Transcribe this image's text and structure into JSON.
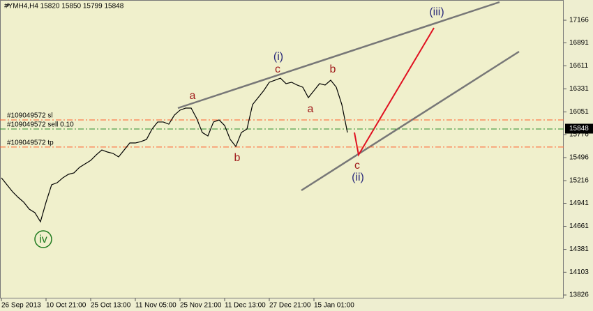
{
  "chart_data": {
    "type": "line",
    "title": "#YMH4,H4  15820 15850 15799 15848",
    "categories": [
      "26 Sep 2013",
      null,
      null,
      null,
      null,
      null,
      null,
      null,
      "10 Oct 21:00",
      null,
      null,
      null,
      null,
      null,
      null,
      null,
      "25 Oct 13:00",
      null,
      null,
      null,
      null,
      null,
      null,
      null,
      "11 Nov 05:00",
      null,
      null,
      null,
      null,
      null,
      null,
      null,
      "25 Nov 21:00",
      null,
      null,
      null,
      null,
      null,
      null,
      null,
      "11 Dec 13:00",
      null,
      null,
      null,
      null,
      null,
      null,
      null,
      "27 Dec 21:00",
      null,
      null,
      null,
      null,
      null,
      null,
      null,
      "15 Jan 01:00",
      null,
      null,
      null,
      null,
      null,
      null
    ],
    "values": [
      15250,
      15166,
      15081,
      15013,
      14954,
      14869,
      14827,
      14716,
      14954,
      15166,
      15191,
      15250,
      15293,
      15310,
      15378,
      15420,
      15462,
      15530,
      15589,
      15564,
      15547,
      15505,
      15589,
      15674,
      15674,
      15691,
      15717,
      15844,
      15929,
      15929,
      15903,
      16013,
      16073,
      16098,
      16098,
      15971,
      15801,
      15759,
      15929,
      15954,
      15886,
      15717,
      15632,
      15801,
      15844,
      16140,
      16225,
      16310,
      16412,
      16437,
      16462,
      16395,
      16412,
      16378,
      16352,
      16225,
      16310,
      16395,
      16378,
      16437,
      16352,
      16140,
      15801
    ],
    "color": "#000000",
    "ylim": [
      13784,
      17412
    ],
    "yticks": [
      13826,
      14103,
      14381,
      14661,
      14941,
      15216,
      15496,
      15776,
      16051,
      16331,
      16611,
      16891,
      17166
    ],
    "current_price": 15848,
    "levels": [
      {
        "label": "#109049572 sl",
        "value": 15954,
        "color": "#ff5a28"
      },
      {
        "label": "#109049572 sell 0.10",
        "value": 15844,
        "color": "#2e8b2e"
      },
      {
        "label": "#109049572 tp",
        "value": 15624,
        "color": "#ff5a28"
      }
    ],
    "annotations": [
      {
        "text": "(iii)",
        "color": "#2b2b7a"
      },
      {
        "text": "(i)",
        "color": "#2b2b7a"
      },
      {
        "text": "c",
        "color": "#a01c1c"
      },
      {
        "text": "b",
        "color": "#a01c1c"
      },
      {
        "text": "a",
        "color": "#a01c1c"
      },
      {
        "text": "a",
        "color": "#a01c1c"
      },
      {
        "text": "b",
        "color": "#a01c1c"
      },
      {
        "text": "c",
        "color": "#a01c1c"
      },
      {
        "text": "(ii)",
        "color": "#2b2b7a"
      },
      {
        "text": "iv",
        "color": "#1e7a1e"
      }
    ]
  }
}
